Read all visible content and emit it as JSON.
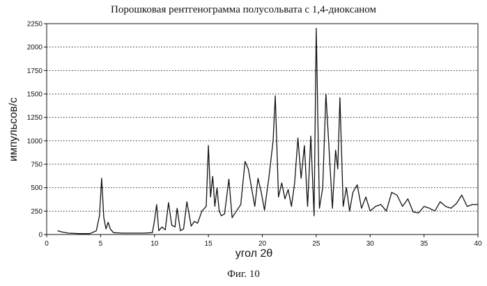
{
  "chart_data": {
    "type": "line",
    "title": "Порошковая рентгенограмма полусольвата с 1,4-диоксаном",
    "xlabel": "угол 2θ",
    "ylabel": "импульсов/с",
    "caption": "Фиг. 10",
    "xlim": [
      0,
      40
    ],
    "ylim": [
      0,
      2250
    ],
    "xticks": [
      0,
      5,
      10,
      15,
      20,
      25,
      30,
      35,
      40
    ],
    "yticks": [
      0,
      250,
      500,
      750,
      1000,
      1250,
      1500,
      1750,
      2000,
      2250
    ],
    "grid": "horizontal-dotted",
    "series": [
      {
        "color": "#111111",
        "x": [
          1.0,
          1.5,
          2.0,
          3.0,
          4.0,
          4.6,
          4.9,
          5.1,
          5.3,
          5.5,
          5.7,
          5.9,
          6.2,
          7.0,
          8.0,
          9.0,
          9.8,
          10.0,
          10.2,
          10.4,
          10.7,
          11.0,
          11.3,
          11.6,
          11.9,
          12.1,
          12.4,
          12.7,
          13.0,
          13.4,
          13.7,
          14.0,
          14.4,
          14.8,
          15.0,
          15.2,
          15.4,
          15.6,
          15.8,
          16.0,
          16.2,
          16.5,
          16.9,
          17.2,
          17.6,
          18.0,
          18.4,
          18.7,
          19.0,
          19.3,
          19.6,
          19.9,
          20.2,
          20.6,
          21.0,
          21.2,
          21.5,
          21.8,
          22.1,
          22.4,
          22.7,
          23.0,
          23.3,
          23.6,
          23.9,
          24.2,
          24.5,
          24.8,
          25.0,
          25.3,
          25.6,
          25.9,
          26.2,
          26.5,
          26.8,
          27.0,
          27.2,
          27.5,
          27.8,
          28.1,
          28.4,
          28.8,
          29.2,
          29.6,
          30.0,
          30.5,
          31.0,
          31.5,
          32.0,
          32.5,
          33.0,
          33.5,
          34.0,
          34.5,
          35.0,
          35.5,
          36.0,
          36.5,
          37.0,
          37.5,
          38.0,
          38.5,
          39.0,
          39.5,
          40.0
        ],
        "y": [
          40,
          25,
          15,
          10,
          10,
          40,
          200,
          600,
          180,
          60,
          130,
          60,
          20,
          15,
          15,
          15,
          20,
          150,
          320,
          40,
          80,
          50,
          340,
          100,
          80,
          280,
          40,
          60,
          350,
          90,
          140,
          120,
          250,
          300,
          950,
          400,
          620,
          300,
          500,
          250,
          200,
          220,
          590,
          180,
          250,
          320,
          780,
          700,
          500,
          300,
          600,
          450,
          260,
          600,
          1000,
          1480,
          400,
          550,
          380,
          480,
          300,
          550,
          1030,
          600,
          950,
          300,
          1050,
          200,
          2200,
          280,
          500,
          1500,
          900,
          280,
          900,
          700,
          1460,
          300,
          500,
          250,
          450,
          530,
          280,
          400,
          250,
          300,
          320,
          250,
          450,
          420,
          300,
          380,
          240,
          230,
          300,
          280,
          250,
          350,
          300,
          280,
          330,
          420,
          300,
          320,
          320
        ]
      }
    ]
  }
}
